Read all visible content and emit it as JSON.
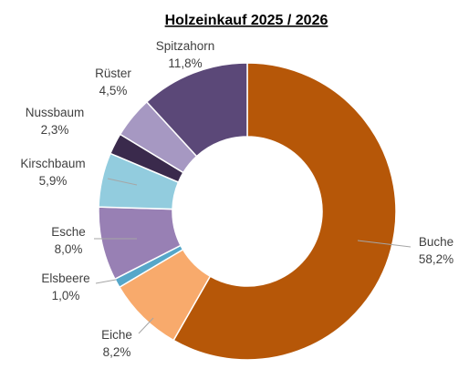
{
  "chart_data": {
    "type": "pie",
    "variant": "doughnut",
    "title": "Holzeinkauf 2025 / 2026",
    "slices": [
      {
        "name": "Buche",
        "value": 58.2,
        "label": "58,2%",
        "color": "#b65708"
      },
      {
        "name": "Eiche",
        "value": 8.2,
        "label": "8,2%",
        "color": "#f8aa6c"
      },
      {
        "name": "Elsbeere",
        "value": 1.0,
        "label": "1,0%",
        "color": "#56a7c9"
      },
      {
        "name": "Esche",
        "value": 8.0,
        "label": "8,0%",
        "color": "#9880b4"
      },
      {
        "name": "Kirschbaum",
        "value": 5.9,
        "label": "5,9%",
        "color": "#92ccde"
      },
      {
        "name": "Nussbaum",
        "value": 2.3,
        "label": "2,3%",
        "color": "#3a2a4c"
      },
      {
        "name": "Rüster",
        "value": 4.5,
        "label": "4,5%",
        "color": "#a698c2"
      },
      {
        "name": "Spitzahorn",
        "value": 11.8,
        "label": "11,8%",
        "color": "#5b4878"
      }
    ],
    "legend": "none",
    "data_labels": "outside-with-leader-lines"
  }
}
